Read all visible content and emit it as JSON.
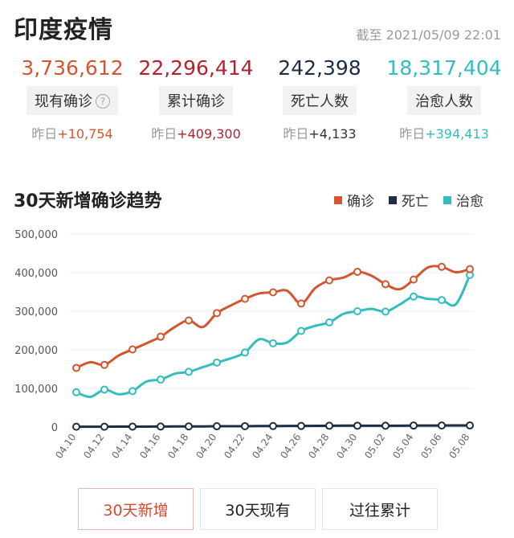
{
  "title": "印度疫情",
  "timestamp": "截至 2021/05/09 22:01",
  "stats": [
    {
      "num": "3,736,612",
      "label": "现有确诊",
      "delta_prefix": "昨日",
      "delta": "+10,754",
      "color": "#d4552f",
      "delta_color": "#d4552f"
    },
    {
      "num": "22,296,414",
      "label": "累计确诊",
      "delta_prefix": "昨日",
      "delta": "+409,300",
      "color": "#b5222e",
      "delta_color": "#b5222e"
    },
    {
      "num": "242,398",
      "label": "死亡人数",
      "delta_prefix": "昨日",
      "delta": "+4,133",
      "color": "#1e2c47",
      "delta_color": "#333333"
    },
    {
      "num": "18,317,404",
      "label": "治愈人数",
      "delta_prefix": "昨日",
      "delta": "+394,413",
      "color": "#35bdbe",
      "delta_color": "#35bdbe"
    }
  ],
  "help_icon": "question-circle-icon",
  "section_title": "30天新增确诊趋势",
  "legend": [
    {
      "name": "确诊",
      "color": "#d4552f"
    },
    {
      "name": "死亡",
      "color": "#1e2c47"
    },
    {
      "name": "治愈",
      "color": "#35bdbe"
    }
  ],
  "chart_data": {
    "type": "line",
    "title": "30天新增确诊趋势",
    "y_ticks": [
      "500,000",
      "400,000",
      "300,000",
      "200,000",
      "100,000",
      "0"
    ],
    "ylim": [
      0,
      500000
    ],
    "grid": true,
    "legend_position": "top-right",
    "x": [
      "04.10",
      "04.11",
      "04.12",
      "04.13",
      "04.14",
      "04.15",
      "04.16",
      "04.17",
      "04.18",
      "04.19",
      "04.20",
      "04.21",
      "04.22",
      "04.23",
      "04.24",
      "04.25",
      "04.26",
      "04.27",
      "04.28",
      "04.29",
      "04.30",
      "05.01",
      "05.02",
      "05.03",
      "05.04",
      "05.05",
      "05.06",
      "05.07",
      "05.08"
    ],
    "x_tick_labels": [
      "04.10",
      "04.12",
      "04.14",
      "04.16",
      "04.18",
      "04.20",
      "04.22",
      "04.24",
      "04.26",
      "04.28",
      "04.30",
      "05.02",
      "05.04",
      "05.06",
      "05.08"
    ],
    "series": [
      {
        "name": "确诊",
        "color": "#d4552f",
        "values": [
          153000,
          168000,
          161000,
          185000,
          201000,
          217000,
          234000,
          259000,
          276000,
          259000,
          295000,
          315000,
          332000,
          346000,
          349000,
          353000,
          320000,
          360000,
          380000,
          387000,
          402000,
          392000,
          370000,
          357000,
          382000,
          413000,
          415000,
          401000,
          409000
        ],
        "markers": [
          0,
          2,
          4,
          6,
          8,
          10,
          12,
          14,
          16,
          18,
          20,
          22,
          24,
          26,
          28
        ]
      },
      {
        "name": "死亡",
        "color": "#1e2c47",
        "values": [
          800,
          900,
          900,
          1000,
          1000,
          1100,
          1300,
          1500,
          1600,
          1600,
          2000,
          2100,
          2200,
          2600,
          2600,
          2800,
          2800,
          3000,
          3300,
          3600,
          3500,
          3500,
          3400,
          3400,
          3800,
          3900,
          4000,
          4200,
          4100
        ],
        "markers": [
          0,
          2,
          4,
          6,
          8,
          10,
          12,
          14,
          16,
          18,
          20,
          22,
          24,
          26,
          28
        ]
      },
      {
        "name": "治愈",
        "color": "#35bdbe",
        "values": [
          90000,
          78000,
          97000,
          85000,
          93000,
          118000,
          123000,
          138000,
          143000,
          155000,
          167000,
          178000,
          193000,
          227000,
          217000,
          219000,
          249000,
          262000,
          271000,
          293000,
          300000,
          306000,
          299000,
          317000,
          338000,
          332000,
          329000,
          318000,
          394000
        ],
        "markers": [
          0,
          2,
          4,
          6,
          8,
          10,
          12,
          14,
          16,
          18,
          20,
          22,
          24,
          26,
          28
        ]
      }
    ]
  },
  "tabs": [
    {
      "label": "30天新增",
      "active": true
    },
    {
      "label": "30天现有",
      "active": false
    },
    {
      "label": "过往累计",
      "active": false
    }
  ]
}
